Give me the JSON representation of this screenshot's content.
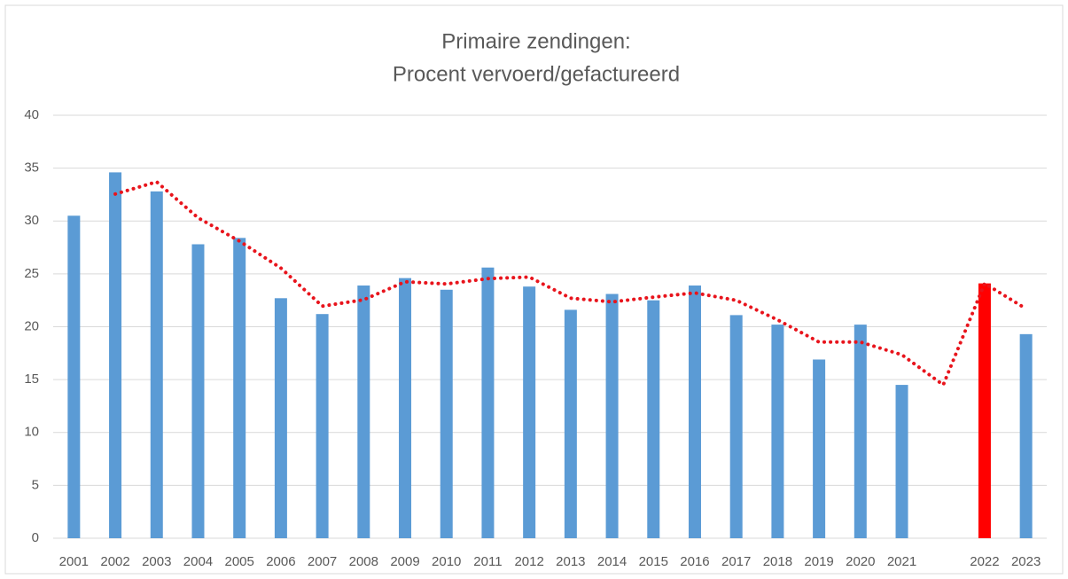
{
  "chart_data": {
    "type": "bar",
    "title": [
      "Primaire zendingen:",
      "Procent vervoerd/gefactureerd"
    ],
    "categories": [
      "2001",
      "2002",
      "2003",
      "2004",
      "2005",
      "2006",
      "2007",
      "2008",
      "2009",
      "2010",
      "2011",
      "2012",
      "2013",
      "2014",
      "2015",
      "2016",
      "2017",
      "2018",
      "2019",
      "2020",
      "2021",
      null,
      "2022",
      "2023"
    ],
    "values": [
      30.5,
      34.6,
      32.8,
      27.8,
      28.4,
      22.7,
      21.2,
      23.9,
      24.6,
      23.5,
      25.6,
      23.8,
      21.6,
      23.1,
      22.5,
      23.9,
      21.1,
      20.2,
      16.9,
      20.2,
      14.5,
      null,
      24.1,
      19.3
    ],
    "colors": [
      "#5b9bd5",
      "#5b9bd5",
      "#5b9bd5",
      "#5b9bd5",
      "#5b9bd5",
      "#5b9bd5",
      "#5b9bd5",
      "#5b9bd5",
      "#5b9bd5",
      "#5b9bd5",
      "#5b9bd5",
      "#5b9bd5",
      "#5b9bd5",
      "#5b9bd5",
      "#5b9bd5",
      "#5b9bd5",
      "#5b9bd5",
      "#5b9bd5",
      "#5b9bd5",
      "#5b9bd5",
      "#5b9bd5",
      null,
      "#ff0000",
      "#5b9bd5"
    ],
    "trend": {
      "color": "#e8141c",
      "values": [
        null,
        32.55,
        33.7,
        30.3,
        28.1,
        25.55,
        21.95,
        22.55,
        24.25,
        24.05,
        24.55,
        24.7,
        22.7,
        22.35,
        22.8,
        23.2,
        22.5,
        20.65,
        18.55,
        18.55,
        17.35,
        14.5,
        24.1,
        21.7
      ]
    },
    "ylim": [
      0,
      40
    ],
    "yticks": [
      0,
      5,
      10,
      15,
      20,
      25,
      30,
      35,
      40
    ],
    "grid": true
  }
}
